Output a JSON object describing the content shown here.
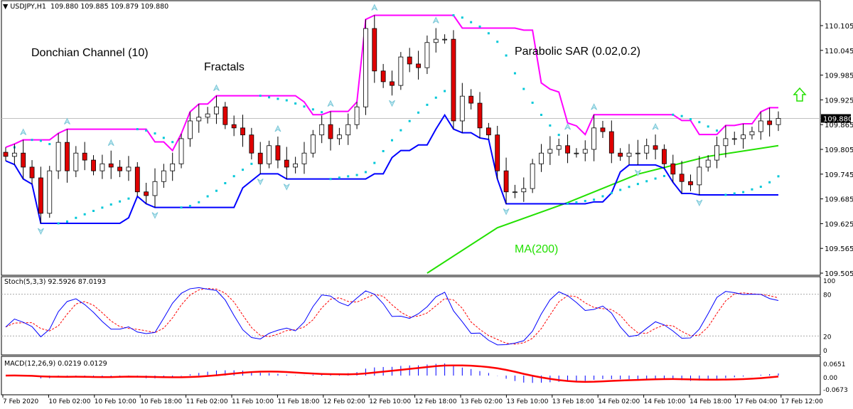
{
  "header": {
    "symbol": "USDJPY,H1",
    "ohlc": "109.880 109.885 109.879 109.880"
  },
  "annotations": {
    "donchian": "Donchian Channel (10)",
    "fractals": "Fractals",
    "sar": "Parabolic SAR (0.02,0.2)",
    "ma": "MA(200)"
  },
  "price_axis": {
    "ticks": [
      "110.105",
      "110.045",
      "109.985",
      "109.925",
      "109.865",
      "109.805",
      "109.745",
      "109.685",
      "109.625",
      "109.565",
      "109.505"
    ],
    "current": "109.880"
  },
  "stoch": {
    "label": "Stoch(5,3,3) 92.5926 87.0193",
    "ticks": [
      "100",
      "80",
      "20",
      "0"
    ]
  },
  "macd": {
    "label": "MACD(12,26,9) 0.0219 0.0129",
    "ticks": [
      "0.0651",
      "0.00",
      "-0.0673"
    ]
  },
  "time_axis": [
    "7 Feb 2020",
    "10 Feb 02:00",
    "10 Feb 10:00",
    "10 Feb 18:00",
    "11 Feb 02:00",
    "11 Feb 10:00",
    "11 Feb 18:00",
    "12 Feb 02:00",
    "12 Feb 10:00",
    "12 Feb 18:00",
    "13 Feb 02:00",
    "13 Feb 10:00",
    "13 Feb 18:00",
    "14 Feb 02:00",
    "14 Feb 10:00",
    "14 Feb 18:00",
    "17 Feb 04:00",
    "17 Feb 12:00"
  ],
  "colors": {
    "bull": "#ffffff",
    "bear": "#e00000",
    "donchian_upper": "#ff00ff",
    "donchian_lower": "#0000ff",
    "sar": "#00c8d8",
    "ma": "#22e000",
    "stoch_main": "#0000ff",
    "stoch_signal": "#ff0000",
    "macd_signal": "#ff0000",
    "macd_hist": "#0000ff",
    "up_arrow": "#22e000"
  },
  "chart_data": {
    "type": "candlestick",
    "closes": [
      109.788,
      109.796,
      109.762,
      109.736,
      109.65,
      109.753,
      109.822,
      109.753,
      109.796,
      109.779,
      109.753,
      109.77,
      109.762,
      109.753,
      109.762,
      109.702,
      109.693,
      109.727,
      109.753,
      109.77,
      109.831,
      109.874,
      109.883,
      109.891,
      109.908,
      109.865,
      109.857,
      109.84,
      109.796,
      109.77,
      109.814,
      109.779,
      109.762,
      109.77,
      109.796,
      109.84,
      109.865,
      109.831,
      109.84,
      109.865,
      109.908,
      110.098,
      109.995,
      109.969,
      109.96,
      110.029,
      110.012,
      110.003,
      110.064,
      110.072,
      110.072,
      109.874,
      109.934,
      109.917,
      109.857,
      109.84,
      109.753,
      109.702,
      109.702,
      109.71,
      109.77,
      109.796,
      109.805,
      109.814,
      109.796,
      109.796,
      109.805,
      109.857,
      109.848,
      109.796,
      109.788,
      109.796,
      109.796,
      109.814,
      109.805,
      109.77,
      109.745,
      109.727,
      109.719,
      109.762,
      109.779,
      109.814,
      109.831,
      109.831,
      109.84,
      109.848,
      109.874,
      109.865,
      109.88
    ],
    "ma200": [
      [
        48,
        109.505
      ],
      [
        56,
        109.615
      ],
      [
        64,
        109.676
      ],
      [
        72,
        109.745
      ],
      [
        80,
        109.788
      ],
      [
        88,
        109.814
      ]
    ],
    "ylim": [
      109.505,
      110.105
    ],
    "stoch_ylim": [
      0,
      100
    ],
    "stoch_levels": [
      20,
      80
    ]
  }
}
